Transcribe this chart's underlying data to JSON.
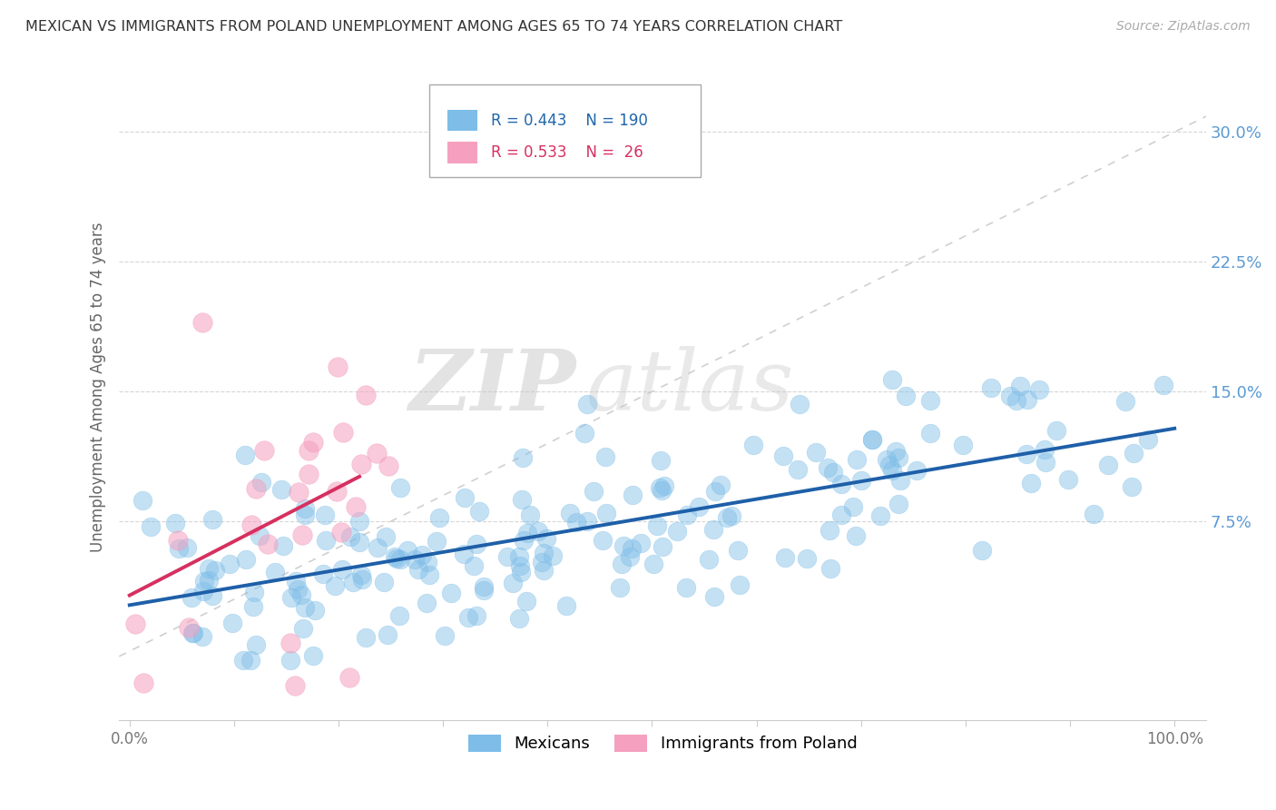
{
  "title": "MEXICAN VS IMMIGRANTS FROM POLAND UNEMPLOYMENT AMONG AGES 65 TO 74 YEARS CORRELATION CHART",
  "source": "Source: ZipAtlas.com",
  "ylabel": "Unemployment Among Ages 65 to 74 years",
  "watermark_part1": "ZIP",
  "watermark_part2": "atlas",
  "legend_blue_R": 0.443,
  "legend_blue_N": 190,
  "legend_pink_R": 0.533,
  "legend_pink_N": 26,
  "xlim": [
    -0.01,
    1.03
  ],
  "ylim": [
    -0.04,
    0.345
  ],
  "xtick_positions": [
    0.0,
    0.1,
    0.2,
    0.3,
    0.4,
    0.5,
    0.6,
    0.7,
    0.8,
    0.9,
    1.0
  ],
  "xticklabels": [
    "0.0%",
    "",
    "",
    "",
    "",
    "",
    "",
    "",
    "",
    "",
    "100.0%"
  ],
  "ytick_positions": [
    0.075,
    0.15,
    0.225,
    0.3
  ],
  "yticklabels": [
    "7.5%",
    "15.0%",
    "22.5%",
    "30.0%"
  ],
  "background_color": "#ffffff",
  "grid_color": "#cccccc",
  "blue_color": "#7dbde8",
  "pink_color": "#f5a0bf",
  "blue_line_color": "#1e5fa8",
  "pink_line_color": "#d63060",
  "ref_line_color": "#d0d0d0",
  "ytick_color": "#5b9bd5",
  "xtick_color": "#777777"
}
